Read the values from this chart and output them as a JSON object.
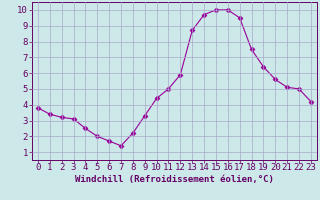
{
  "x": [
    0,
    1,
    2,
    3,
    4,
    5,
    6,
    7,
    8,
    9,
    10,
    11,
    12,
    13,
    14,
    15,
    16,
    17,
    18,
    19,
    20,
    21,
    22,
    23
  ],
  "y": [
    3.8,
    3.4,
    3.2,
    3.1,
    2.5,
    2.0,
    1.7,
    1.4,
    2.2,
    3.3,
    4.4,
    5.0,
    5.9,
    8.7,
    9.7,
    10.0,
    10.0,
    9.5,
    7.5,
    6.4,
    5.6,
    5.1,
    5.0,
    4.2
  ],
  "line_color": "#990099",
  "marker": "D",
  "marker_size": 2.5,
  "background_color": "#cce8e8",
  "grid_color": "#aaaacc",
  "xlabel": "Windchill (Refroidissement éolien,°C)",
  "ylabel": "",
  "xlim": [
    -0.5,
    23.5
  ],
  "ylim": [
    0.5,
    10.5
  ],
  "xticks": [
    0,
    1,
    2,
    3,
    4,
    5,
    6,
    7,
    8,
    9,
    10,
    11,
    12,
    13,
    14,
    15,
    16,
    17,
    18,
    19,
    20,
    21,
    22,
    23
  ],
  "yticks": [
    1,
    2,
    3,
    4,
    5,
    6,
    7,
    8,
    9,
    10
  ],
  "tick_color": "#660066",
  "xlabel_color": "#660066",
  "xlabel_fontsize": 6.5,
  "tick_fontsize": 6.5
}
